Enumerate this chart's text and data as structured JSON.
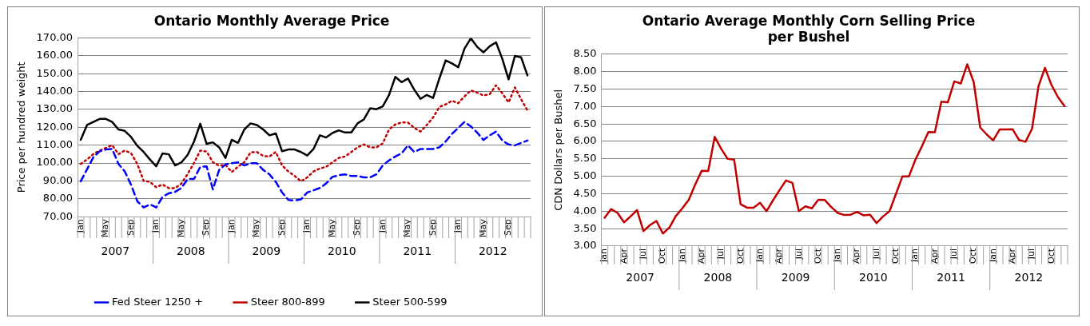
{
  "chart_data": [
    {
      "type": "line",
      "title": "Ontario Monthly Average Price",
      "ylabel": "Price per hundred weight",
      "categories": [
        "Jan",
        null,
        null,
        null,
        "May",
        null,
        null,
        null,
        "Sep",
        null,
        null,
        null,
        "Jan",
        null,
        null,
        null,
        "May",
        null,
        null,
        null,
        "Sep",
        null,
        null,
        null,
        "Jan",
        null,
        null,
        null,
        "May",
        null,
        null,
        null,
        "Sep",
        null,
        null,
        null,
        "Jan",
        null,
        null,
        null,
        "May",
        null,
        null,
        null,
        "Sep",
        null,
        null,
        null,
        "Jan",
        null,
        null,
        null,
        "May",
        null,
        null,
        null,
        "Sep",
        null,
        null,
        null,
        "Jan",
        null,
        null,
        null,
        "May",
        null,
        null,
        null,
        "Sep",
        null,
        null,
        null
      ],
      "annotations": [
        "2007",
        "2008",
        "2009",
        "2010",
        "2011",
        "2012"
      ],
      "ylim": [
        70,
        170
      ],
      "yticks": [
        {
          "value": 70,
          "label": "70.00"
        },
        {
          "value": 80,
          "label": "80.00"
        },
        {
          "value": 90,
          "label": "90.00"
        },
        {
          "value": 100,
          "label": "100.00"
        },
        {
          "value": 110,
          "label": "110.00"
        },
        {
          "value": 120,
          "label": "120.00"
        },
        {
          "value": 130,
          "label": "130.00"
        },
        {
          "value": 140,
          "label": "140.00"
        },
        {
          "value": 150,
          "label": "150.00"
        },
        {
          "value": 160,
          "label": "160.00"
        },
        {
          "value": 170,
          "label": "170.00"
        }
      ],
      "grid": "y",
      "legend": "bottom",
      "marker": "none",
      "series": [
        {
          "name": "Fed Steer 1250 +",
          "color": "#0000ff",
          "line_style": "dashed",
          "values": [
            89.8,
            96.5,
            103.2,
            106.6,
            107.6,
            107.9,
            99.5,
            95.3,
            87.8,
            78.6,
            75.2,
            76.9,
            75.2,
            81.1,
            83.1,
            83.9,
            86.1,
            91.1,
            91.1,
            97.9,
            98.2,
            85.3,
            96.2,
            99.2,
            99.9,
            100.4,
            98.7,
            99.9,
            99.9,
            96.2,
            93.7,
            89.5,
            83.6,
            79.4,
            79.1,
            79.7,
            83.6,
            84.8,
            86.1,
            88.6,
            92.3,
            93.2,
            93.7,
            92.8,
            92.8,
            92,
            92,
            93.7,
            98.7,
            101.5,
            103.7,
            105.4,
            109.9,
            106.2,
            107.9,
            107.9,
            107.9,
            108.8,
            112.1,
            116.3,
            119.7,
            123,
            120.5,
            117.1,
            112.9,
            115.5,
            117.6,
            112.6,
            110.4,
            109.9,
            111.3,
            112.6
          ]
        },
        {
          "name": "Steer 800-899",
          "color": "#c00000",
          "line_style": "dotted",
          "values": [
            99.5,
            102,
            105,
            107,
            108.5,
            110,
            105,
            107,
            105.5,
            99.5,
            90,
            89.5,
            86.5,
            88,
            86,
            86,
            88.5,
            94,
            100,
            107,
            106.5,
            100.5,
            98.5,
            99,
            95,
            98,
            100.5,
            106,
            106.2,
            104,
            103.7,
            106.2,
            98.7,
            95.3,
            92.8,
            89.8,
            92,
            95.3,
            97,
            97.9,
            100.4,
            102.9,
            103.7,
            106.2,
            108.8,
            110.4,
            108.8,
            108.8,
            111,
            118.8,
            121.6,
            122.7,
            122.7,
            119.7,
            117.6,
            121.3,
            125.5,
            131.4,
            132.8,
            134.8,
            133.5,
            137.3,
            140.6,
            139.4,
            137.8,
            138.5,
            143.5,
            139,
            133.9,
            142.3,
            135.6,
            129.4
          ]
        },
        {
          "name": "Steer 500-599",
          "color": "#000000",
          "line_style": "solid",
          "values": [
            113,
            121.3,
            123,
            124.7,
            124.7,
            123,
            118.8,
            118,
            114.6,
            109.6,
            106.2,
            102,
            98.2,
            105.4,
            104.9,
            98.7,
            100.4,
            104.6,
            112,
            122,
            110.8,
            111.6,
            108.8,
            102.9,
            113,
            111.3,
            118.8,
            122.2,
            121.3,
            118.8,
            115.5,
            116.6,
            106.6,
            107.6,
            107.6,
            106.2,
            104.2,
            107.9,
            115.5,
            114.3,
            116.8,
            118.3,
            117.1,
            117.1,
            122.2,
            124.4,
            130.6,
            130.1,
            131.7,
            138.1,
            148.2,
            145.2,
            147.3,
            141.1,
            135.9,
            138.1,
            136.4,
            147.3,
            157.4,
            155.7,
            153.6,
            164.1,
            169.7,
            165,
            161.9,
            165.3,
            167.5,
            158.3,
            146.8,
            159.9,
            159.1,
            149
          ]
        }
      ]
    },
    {
      "type": "line",
      "title": "Ontario Average Monthly Corn Selling Price per Bushel",
      "ylabel": "CDN Dollars per Bushel",
      "categories": [
        "Jan",
        null,
        null,
        "Apr",
        null,
        null,
        "Jul",
        null,
        null,
        "Oct",
        null,
        null,
        "Jan",
        null,
        null,
        "Apr",
        null,
        null,
        "Jul",
        null,
        null,
        "Oct",
        null,
        null,
        "Jan",
        null,
        null,
        "Apr",
        null,
        null,
        "Jul",
        null,
        null,
        "Oct",
        null,
        null,
        "Jan",
        null,
        null,
        "Apr",
        null,
        null,
        "Jul",
        null,
        null,
        "Oct",
        null,
        null,
        "Jan",
        null,
        null,
        "Apr",
        null,
        null,
        "Jul",
        null,
        null,
        "Oct",
        null,
        null,
        "Jan",
        null,
        null,
        "Apr",
        null,
        null,
        "Jul",
        null,
        null,
        "Oct",
        null,
        null
      ],
      "annotations": [
        "2007",
        "2008",
        "2009",
        "2010",
        "2011",
        "2012"
      ],
      "ylim": [
        3,
        8.5
      ],
      "yticks": [
        {
          "value": 3,
          "label": "3.00"
        },
        {
          "value": 3.5,
          "label": "3.50"
        },
        {
          "value": 4,
          "label": "4.00"
        },
        {
          "value": 4.5,
          "label": "4.50"
        },
        {
          "value": 5,
          "label": "5.00"
        },
        {
          "value": 5.5,
          "label": "5.50"
        },
        {
          "value": 6,
          "label": "6.00"
        },
        {
          "value": 6.5,
          "label": "6.50"
        },
        {
          "value": 7,
          "label": "7.00"
        },
        {
          "value": 7.5,
          "label": "7.50"
        },
        {
          "value": 8,
          "label": "8.00"
        },
        {
          "value": 8.5,
          "label": "8.50"
        }
      ],
      "grid": "y",
      "marker": "none",
      "series": [
        {
          "color": "#c00000",
          "line_style": "solid",
          "values": [
            3.81,
            4.06,
            3.95,
            3.68,
            3.85,
            4.03,
            3.43,
            3.6,
            3.72,
            3.36,
            3.53,
            3.86,
            4.08,
            4.33,
            4.77,
            5.16,
            5.15,
            6.13,
            5.79,
            5.5,
            5.48,
            4.2,
            4.1,
            4.1,
            4.24,
            4,
            4.31,
            4.6,
            4.88,
            4.81,
            4,
            4.14,
            4.08,
            4.33,
            4.32,
            4.12,
            3.95,
            3.89,
            3.9,
            3.98,
            3.88,
            3.9,
            3.66,
            3.85,
            4,
            4.5,
            5,
            5,
            5.48,
            5.86,
            6.27,
            6.26,
            7.14,
            7.12,
            7.72,
            7.66,
            8.21,
            7.7,
            6.4,
            6.2,
            6.03,
            6.34,
            6.34,
            6.35,
            6.04,
            5.99,
            6.36,
            7.58,
            8.11,
            7.62,
            7.27,
            7.02
          ]
        }
      ]
    }
  ]
}
